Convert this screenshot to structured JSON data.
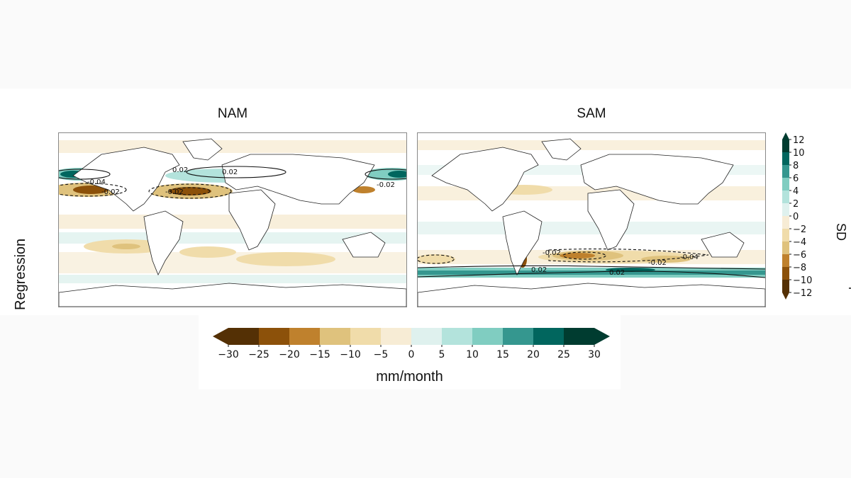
{
  "panels": [
    {
      "title": "NAM",
      "contour_labels": [
        "0.02",
        "-0.02",
        "-0.04",
        "0.02",
        "-0.02",
        "-0.02"
      ]
    },
    {
      "title": "SAM",
      "contour_labels": [
        "-0.02",
        "-0.04",
        "-0.02",
        "0.02",
        "0.02"
      ]
    }
  ],
  "row_label": "Regression",
  "right_colorbar": {
    "label": "mm/month per SD",
    "ticks": [
      "12",
      "10",
      "8",
      "6",
      "4",
      "2",
      "0",
      "−2",
      "−4",
      "−6",
      "−8",
      "−10",
      "−12"
    ]
  },
  "bottom_colorbar": {
    "label": "mm/month",
    "ticks": [
      "−30",
      "−25",
      "−20",
      "−15",
      "−10",
      "−5",
      "0",
      "5",
      "10",
      "15",
      "20",
      "25",
      "30"
    ]
  },
  "colors": {
    "brown_dark": "#543005",
    "brown_5": "#8c510a",
    "brown_4": "#bf812d",
    "brown_3": "#dfc27d",
    "brown_2": "#f0dcaa",
    "brown_1": "#f7ecd5",
    "teal_1": "#dff1ee",
    "teal_2": "#b3e3dc",
    "teal_3": "#80cdc1",
    "teal_4": "#35978f",
    "teal_5": "#01665e",
    "teal_dark": "#003c30"
  }
}
